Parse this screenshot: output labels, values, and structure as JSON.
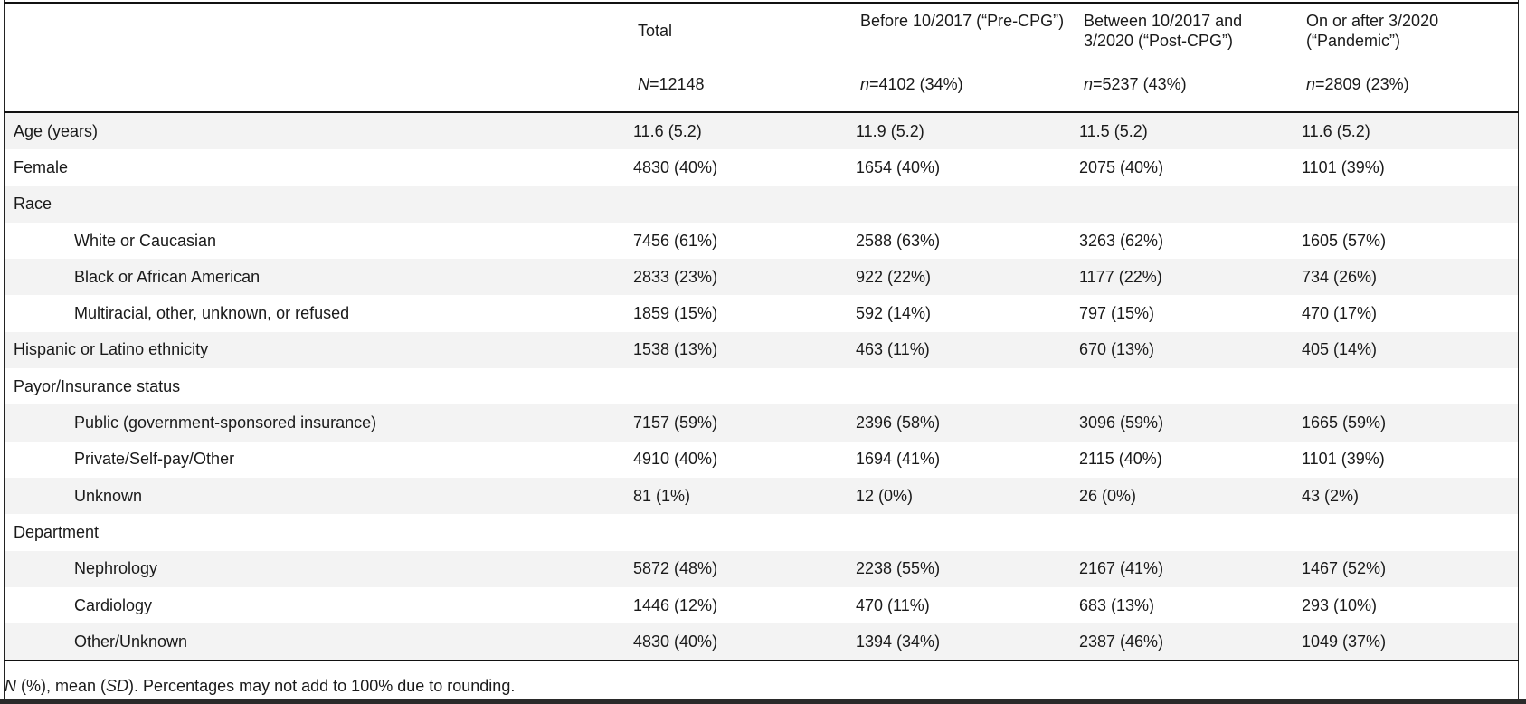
{
  "header": {
    "columns": [
      {
        "title": "Total",
        "n_prefix": "N",
        "n_value": "=12148"
      },
      {
        "title": "Before 10/2017 (“Pre-CPG”)",
        "n_prefix": "n",
        "n_value": "=4102 (34%)"
      },
      {
        "title": "Between 10/2017 and 3/2020 (“Post-CPG”)",
        "n_prefix": "n",
        "n_value": "=5237 (43%)"
      },
      {
        "title": "On or after 3/2020 (“Pandemic”)",
        "n_prefix": "n",
        "n_value": "=2809 (23%)"
      }
    ]
  },
  "rows": [
    {
      "label": "Age (years)",
      "values": [
        "11.6 (5.2)",
        "11.9 (5.2)",
        "11.5 (5.2)",
        "11.6 (5.2)"
      ]
    },
    {
      "label": "Female",
      "values": [
        "4830 (40%)",
        "1654 (40%)",
        "2075 (40%)",
        "1101 (39%)"
      ]
    },
    {
      "label": "Race",
      "values": [
        "",
        "",
        "",
        ""
      ]
    },
    {
      "label": "White or Caucasian",
      "values": [
        "7456 (61%)",
        "2588 (63%)",
        "3263 (62%)",
        "1605 (57%)"
      ]
    },
    {
      "label": "Black or African American",
      "values": [
        "2833 (23%)",
        "922 (22%)",
        "1177 (22%)",
        "734 (26%)"
      ]
    },
    {
      "label": "Multiracial, other, unknown, or refused",
      "values": [
        "1859 (15%)",
        "592 (14%)",
        "797 (15%)",
        "470 (17%)"
      ]
    },
    {
      "label": "Hispanic or Latino ethnicity",
      "values": [
        "1538 (13%)",
        "463 (11%)",
        "670 (13%)",
        "405 (14%)"
      ]
    },
    {
      "label": "Payor/Insurance status",
      "values": [
        "",
        "",
        "",
        ""
      ]
    },
    {
      "label": "Public (government-sponsored insurance)",
      "values": [
        "7157 (59%)",
        "2396 (58%)",
        "3096 (59%)",
        "1665 (59%)"
      ]
    },
    {
      "label": "Private/Self-pay/Other",
      "values": [
        "4910 (40%)",
        "1694 (41%)",
        "2115 (40%)",
        "1101 (39%)"
      ]
    },
    {
      "label": "Unknown",
      "values": [
        "81 (1%)",
        "12 (0%)",
        "26 (0%)",
        "43 (2%)"
      ]
    },
    {
      "label": "Department",
      "values": [
        "",
        "",
        "",
        ""
      ]
    },
    {
      "label": "Nephrology",
      "values": [
        "5872 (48%)",
        "2238 (55%)",
        "2167 (41%)",
        "1467 (52%)"
      ]
    },
    {
      "label": "Cardiology",
      "values": [
        "1446 (12%)",
        "470 (11%)",
        "683 (13%)",
        "293 (10%)"
      ]
    },
    {
      "label": "Other/Unknown",
      "values": [
        "4830 (40%)",
        "1394 (34%)",
        "2387 (46%)",
        "1049 (37%)"
      ]
    }
  ],
  "footnote": {
    "n": "N",
    "part1": " (%), mean (",
    "sd": "SD",
    "part2": "). Percentages may not add to 100% due to rounding."
  }
}
